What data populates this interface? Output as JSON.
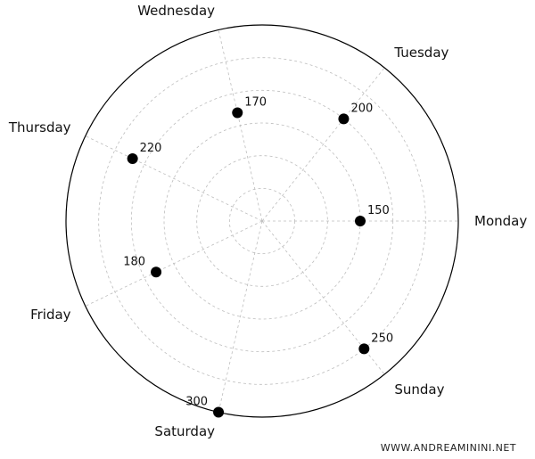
{
  "chart_data": {
    "type": "scatter",
    "projection": "polar",
    "angular_direction": "counterclockwise",
    "angular_start": "Monday at 0°",
    "categories": [
      "Monday",
      "Tuesday",
      "Wednesday",
      "Thursday",
      "Friday",
      "Saturday",
      "Sunday"
    ],
    "values": [
      150,
      200,
      170,
      220,
      180,
      300,
      250
    ],
    "radial_range": [
      0,
      300
    ],
    "radial_ticks": [
      50,
      100,
      150,
      200,
      250,
      300
    ],
    "radial_tick_labels_shown": false,
    "point_labels": true,
    "grid": true,
    "grid_style": "dashed",
    "title": "",
    "colors": {
      "points": "#000000",
      "grid": "#bdbdbd",
      "frame": "#000000"
    }
  },
  "watermark": "WWW.ANDREAMININI.NET"
}
